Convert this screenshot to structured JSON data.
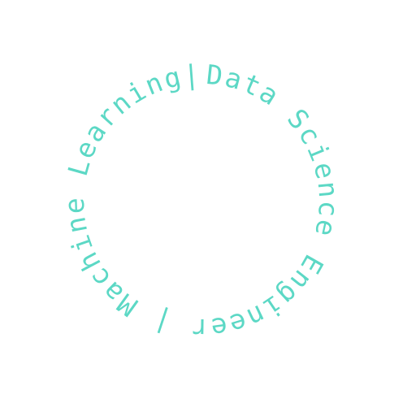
{
  "ring_text": "Data Science Engineer | Machine Learning|",
  "colors": {
    "text": "#5cd8c5",
    "background": "#ffffff"
  }
}
